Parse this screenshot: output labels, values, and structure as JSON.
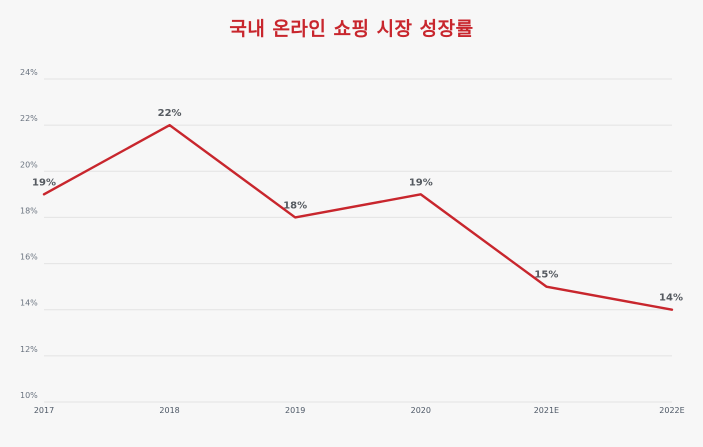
{
  "chart_data": {
    "type": "line",
    "title": "국내 온라인 쇼핑 시장 성장률",
    "xlabel": "",
    "ylabel": "",
    "categories": [
      "2017",
      "2018",
      "2019",
      "2020",
      "2021E",
      "2022E"
    ],
    "series": [
      {
        "values": [
          19,
          22,
          18,
          19,
          15,
          14
        ],
        "data_labels": [
          "19%",
          "22%",
          "18%",
          "19%",
          "15%",
          "14%"
        ]
      }
    ],
    "ylim": [
      10,
      24
    ],
    "y_ticks": [
      10,
      12,
      14,
      16,
      18,
      20,
      22,
      24
    ],
    "y_tick_labels": [
      "10%",
      "12%",
      "14%",
      "16%",
      "18%",
      "20%",
      "22%",
      "24%"
    ],
    "grid": true,
    "legend": "none",
    "colors": {
      "title": "#c8262d",
      "line": "#c8262d",
      "grid": "#e3e3e3",
      "background": "#f7f7f7"
    }
  }
}
